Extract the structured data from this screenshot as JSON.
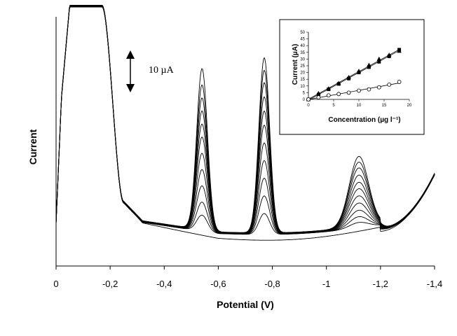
{
  "chart_data": [
    {
      "type": "line",
      "xlabel": "Potential (V)",
      "ylabel": "Current",
      "x_ticks": [
        "0",
        "-0,2",
        "-0,4",
        "-0,6",
        "-0,8",
        "-1",
        "-1,2",
        "-1,4"
      ],
      "xlim": [
        0,
        -1.4
      ],
      "scale_bar": {
        "label": "10 µA",
        "value": 10
      },
      "curves": [
        {
          "peak1": 0.0,
          "peak2": 0.0,
          "peak3": 0.0
        },
        {
          "peak1": 0.1,
          "peak2": 0.12,
          "peak3": 0.08
        },
        {
          "peak1": 0.18,
          "peak2": 0.22,
          "peak3": 0.16
        },
        {
          "peak1": 0.28,
          "peak2": 0.32,
          "peak3": 0.25
        },
        {
          "peak1": 0.38,
          "peak2": 0.42,
          "peak3": 0.35
        },
        {
          "peak1": 0.48,
          "peak2": 0.52,
          "peak3": 0.45
        },
        {
          "peak1": 0.58,
          "peak2": 0.62,
          "peak3": 0.55
        },
        {
          "peak1": 0.66,
          "peak2": 0.7,
          "peak3": 0.64
        },
        {
          "peak1": 0.74,
          "peak2": 0.78,
          "peak3": 0.74
        },
        {
          "peak1": 0.82,
          "peak2": 0.86,
          "peak3": 0.84
        },
        {
          "peak1": 0.9,
          "peak2": 0.93,
          "peak3": 0.92
        },
        {
          "peak1": 1.0,
          "peak2": 1.0,
          "peak3": 1.0
        }
      ]
    },
    {
      "type": "scatter",
      "xlabel": "Concentration (µg l⁻¹)",
      "ylabel": "Current (µA)",
      "xlim": [
        0,
        20
      ],
      "ylim": [
        0,
        50
      ],
      "x_ticks": [
        "0",
        "5",
        "10",
        "15",
        "20"
      ],
      "y_ticks": [
        "0",
        "5",
        "10",
        "15",
        "20",
        "25",
        "30",
        "35",
        "40",
        "45",
        "50"
      ],
      "series": [
        {
          "marker": "triangle",
          "x": [
            0,
            2,
            4,
            6,
            8,
            10,
            12,
            14,
            16,
            18
          ],
          "y": [
            0,
            4.5,
            8,
            12,
            16.5,
            21,
            25.5,
            30,
            33,
            36
          ]
        },
        {
          "marker": "square",
          "x": [
            0,
            2,
            4,
            6,
            8,
            10,
            12,
            14,
            16,
            18
          ],
          "y": [
            0,
            3.5,
            7.5,
            11.5,
            15.5,
            20,
            24,
            28,
            32,
            37
          ]
        },
        {
          "marker": "circle",
          "x": [
            0,
            2,
            4,
            6,
            8,
            10,
            12,
            14,
            16,
            18
          ],
          "y": [
            0,
            1.5,
            3,
            4,
            5,
            6.5,
            7.5,
            9,
            11,
            13
          ]
        }
      ]
    }
  ]
}
